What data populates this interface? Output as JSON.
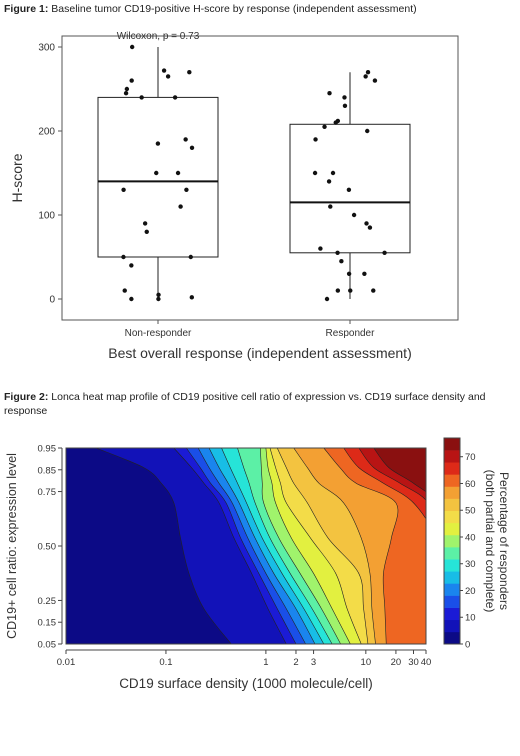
{
  "figures": [
    {
      "label": "Figure 1:",
      "caption": "Baseline tumor CD19-positive H-score by response (independent assessment)"
    },
    {
      "label": "Figure 2:",
      "caption": "Lonca heat map profile of CD19 positive cell ratio of expression vs. CD19 surface density and response"
    }
  ],
  "colors": {
    "dark_navy": "#0c0a86",
    "blue": "#1b1bd6",
    "orange": "#f3a033",
    "dark_red": "#8a1010"
  },
  "chart_data": [
    {
      "type": "scatter",
      "subtype": "boxplot-with-jitter",
      "categories": [
        "Non-responder",
        "Responder"
      ],
      "xlabel": "Best overall response (independent assessment)",
      "ylabel": "H-score",
      "ylim": [
        0,
        300
      ],
      "yticks": [
        0,
        100,
        200,
        300
      ],
      "annotation": "Wilcoxon, p = 0.73",
      "boxes": [
        {
          "category": "Non-responder",
          "min": 0,
          "q1": 50,
          "median": 140,
          "q3": 240,
          "max": 300
        },
        {
          "category": "Responder",
          "min": 0,
          "q1": 55,
          "median": 115,
          "q3": 208,
          "max": 270
        }
      ],
      "series": [
        {
          "category": "Non-responder",
          "values": [
            300,
            270,
            272,
            265,
            260,
            250,
            245,
            240,
            240,
            190,
            185,
            180,
            150,
            150,
            130,
            130,
            110,
            90,
            80,
            50,
            50,
            40,
            10,
            5,
            2,
            0,
            0
          ]
        },
        {
          "category": "Responder",
          "values": [
            270,
            265,
            260,
            245,
            240,
            230,
            212,
            210,
            205,
            200,
            190,
            150,
            150,
            140,
            130,
            110,
            100,
            90,
            85,
            60,
            55,
            55,
            45,
            30,
            30,
            10,
            10,
            10,
            0
          ]
        }
      ],
      "grid": false
    },
    {
      "type": "heatmap",
      "subtype": "filled-contour",
      "xlabel": "CD19 surface density (1000 molecule/cell)",
      "ylabel": "CD19+ cell ratio: expression level",
      "x_scale": "log",
      "xticks": [
        "0.01",
        "0.1",
        "1",
        "2",
        "3",
        "10",
        "20",
        "30",
        "40"
      ],
      "yticks": [
        "0.05",
        "0.15",
        "0.25",
        "0.50",
        "0.75",
        "0.85",
        "0.95"
      ],
      "colorbar_label": "Percentage of responders (both partial and complete)",
      "colorbar_ticks": [
        0,
        10,
        20,
        30,
        40,
        50,
        60,
        70
      ],
      "colorbar_range": [
        0,
        77
      ],
      "colorbar_colors": [
        "#0c0a86",
        "#1212b8",
        "#1b1bd6",
        "#1a4fe8",
        "#1a85ee",
        "#18bde6",
        "#26e4d8",
        "#5cf0a6",
        "#a0f36c",
        "#e2f040",
        "#f3dc48",
        "#f3c340",
        "#f3a033",
        "#ee6622",
        "#dd2a18",
        "#b81414",
        "#8a1010"
      ],
      "grid": false
    }
  ]
}
